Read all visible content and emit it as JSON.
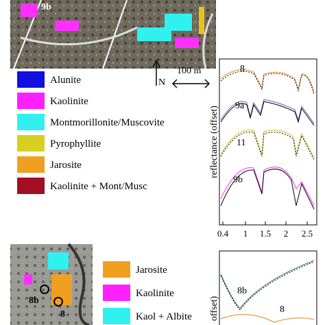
{
  "top_image": {
    "label": "9b"
  },
  "north": "N",
  "scale_bar": "100 m",
  "legend": [
    "Alunite",
    "Kaolinite",
    "Montmorillonite/Muscovite",
    "Pyrophyllite",
    "Jarosite",
    "Kaolinite + Mont/Musc"
  ],
  "plot": {
    "y_label": "reflectance (offset)",
    "x_ticks": [
      "0.4",
      "1",
      "1.5",
      "2",
      "2.5"
    ],
    "curve_labels": [
      "8",
      "9a",
      "11",
      "9b"
    ]
  },
  "bottom_image": {
    "labels": [
      "8b",
      "8"
    ]
  },
  "bottom_legend": [
    "Jarosite",
    "Kaolinite",
    "Kaol + Albite"
  ],
  "bottom_plot": {
    "y_label": "offset)",
    "curve_labels": [
      "8b",
      "8"
    ]
  }
}
